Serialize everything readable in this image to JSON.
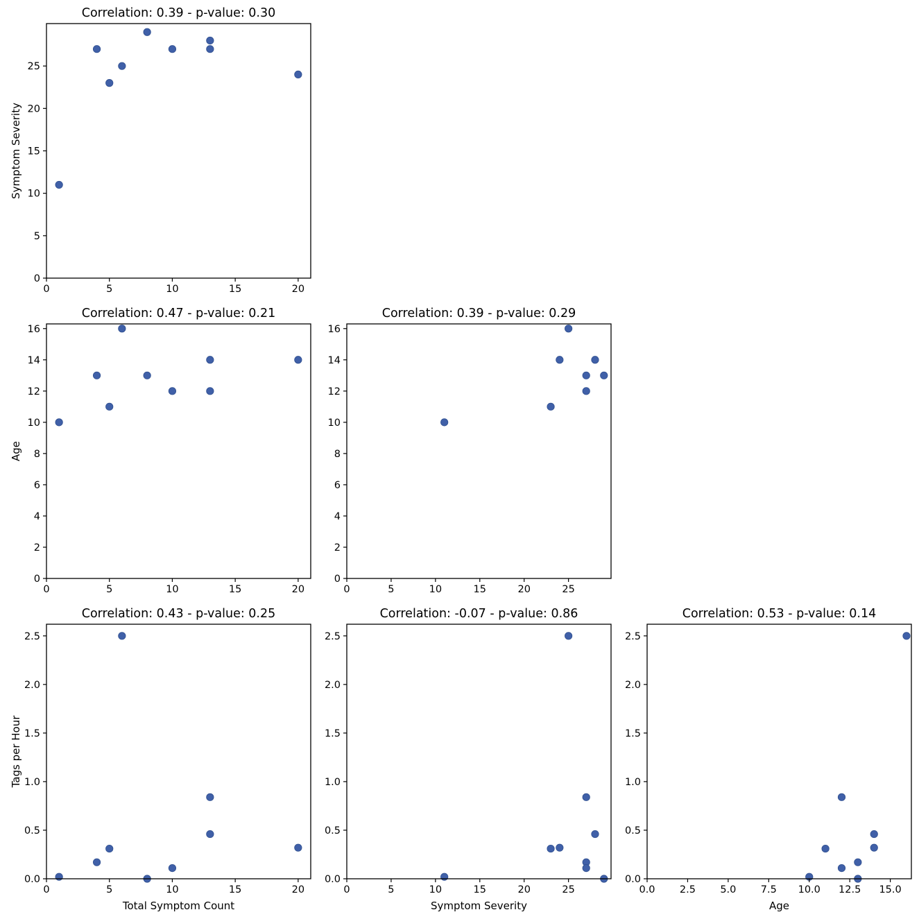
{
  "colors": {
    "marker": "#4060a8",
    "marker_edge": "#2f4f8f",
    "axes": "#000000",
    "background": "#ffffff"
  },
  "chart_data": [
    {
      "type": "scatter",
      "title": "Correlation: 0.39 - p-value: 0.30",
      "xlabel": "",
      "ylabel": "Symptom Severity",
      "xlim": [
        0,
        21
      ],
      "ylim": [
        0,
        30
      ],
      "xticks": [
        0,
        5,
        10,
        15,
        20
      ],
      "xtick_labels": [
        "0",
        "5",
        "10",
        "15",
        "20"
      ],
      "yticks": [
        0,
        5,
        10,
        15,
        20,
        25
      ],
      "ytick_labels": [
        "0",
        "5",
        "10",
        "15",
        "20",
        "25"
      ],
      "x": [
        1,
        4,
        5,
        6,
        8,
        10,
        13,
        13,
        20
      ],
      "y": [
        11,
        27,
        23,
        25,
        29,
        27,
        28,
        27,
        24
      ]
    },
    {
      "type": "scatter",
      "title": "Correlation: 0.47 - p-value: 0.21",
      "xlabel": "",
      "ylabel": "Age",
      "xlim": [
        0,
        21
      ],
      "ylim": [
        0,
        16.3
      ],
      "xticks": [
        0,
        5,
        10,
        15,
        20
      ],
      "xtick_labels": [
        "0",
        "5",
        "10",
        "15",
        "20"
      ],
      "yticks": [
        0,
        2,
        4,
        6,
        8,
        10,
        12,
        14,
        16
      ],
      "ytick_labels": [
        "0",
        "2",
        "4",
        "6",
        "8",
        "10",
        "12",
        "14",
        "16"
      ],
      "x": [
        1,
        4,
        5,
        6,
        8,
        10,
        13,
        13,
        20
      ],
      "y": [
        10,
        13,
        11,
        16,
        13,
        12,
        14,
        12,
        14
      ]
    },
    {
      "type": "scatter",
      "title": "Correlation: 0.39 - p-value: 0.29",
      "xlabel": "",
      "ylabel": "",
      "xlim": [
        0,
        29.8
      ],
      "ylim": [
        0,
        16.3
      ],
      "xticks": [
        0,
        5,
        10,
        15,
        20,
        25
      ],
      "xtick_labels": [
        "0",
        "5",
        "10",
        "15",
        "20",
        "25"
      ],
      "yticks": [
        0,
        2,
        4,
        6,
        8,
        10,
        12,
        14,
        16
      ],
      "ytick_labels": [
        "0",
        "2",
        "4",
        "6",
        "8",
        "10",
        "12",
        "14",
        "16"
      ],
      "x": [
        11,
        23,
        24,
        25,
        27,
        27,
        28,
        29
      ],
      "y": [
        10,
        11,
        14,
        16,
        13,
        12,
        14,
        13
      ]
    },
    {
      "type": "scatter",
      "title": "Correlation: 0.43 - p-value: 0.25",
      "xlabel": "Total Symptom Count",
      "ylabel": "Tags per Hour",
      "xlim": [
        0,
        21
      ],
      "ylim": [
        0,
        2.62
      ],
      "xticks": [
        0,
        5,
        10,
        15,
        20
      ],
      "xtick_labels": [
        "0",
        "5",
        "10",
        "15",
        "20"
      ],
      "yticks": [
        0,
        0.5,
        1,
        1.5,
        2,
        2.5
      ],
      "ytick_labels": [
        "0.0",
        "0.5",
        "1.0",
        "1.5",
        "2.0",
        "2.5"
      ],
      "x": [
        1,
        4,
        5,
        6,
        8,
        10,
        13,
        13,
        20
      ],
      "y": [
        0.02,
        0.17,
        0.31,
        2.5,
        0.0,
        0.11,
        0.84,
        0.46,
        0.32
      ]
    },
    {
      "type": "scatter",
      "title": "Correlation: -0.07 - p-value: 0.86",
      "xlabel": "Symptom Severity",
      "ylabel": "",
      "xlim": [
        0,
        29.8
      ],
      "ylim": [
        0,
        2.62
      ],
      "xticks": [
        0,
        5,
        10,
        15,
        20,
        25
      ],
      "xtick_labels": [
        "0",
        "5",
        "10",
        "15",
        "20",
        "25"
      ],
      "yticks": [
        0,
        0.5,
        1,
        1.5,
        2,
        2.5
      ],
      "ytick_labels": [
        "0.0",
        "0.5",
        "1.0",
        "1.5",
        "2.0",
        "2.5"
      ],
      "x": [
        11,
        23,
        24,
        25,
        27,
        27,
        27,
        28,
        29
      ],
      "y": [
        0.02,
        0.31,
        0.32,
        2.5,
        0.84,
        0.17,
        0.11,
        0.46,
        0.0
      ]
    },
    {
      "type": "scatter",
      "title": "Correlation: 0.53 - p-value: 0.14",
      "xlabel": "Age",
      "ylabel": "",
      "xlim": [
        0,
        16.3
      ],
      "ylim": [
        0,
        2.62
      ],
      "xticks": [
        0,
        2.5,
        5,
        7.5,
        10,
        12.5,
        15
      ],
      "xtick_labels": [
        "0.0",
        "2.5",
        "5.0",
        "7.5",
        "10.0",
        "12.5",
        "15.0"
      ],
      "yticks": [
        0,
        0.5,
        1,
        1.5,
        2,
        2.5
      ],
      "ytick_labels": [
        "0.0",
        "0.5",
        "1.0",
        "1.5",
        "2.0",
        "2.5"
      ],
      "x": [
        10,
        11,
        12,
        12,
        13,
        13,
        14,
        14,
        16
      ],
      "y": [
        0.02,
        0.31,
        0.84,
        0.11,
        0.17,
        0.0,
        0.46,
        0.32,
        2.5
      ]
    }
  ]
}
